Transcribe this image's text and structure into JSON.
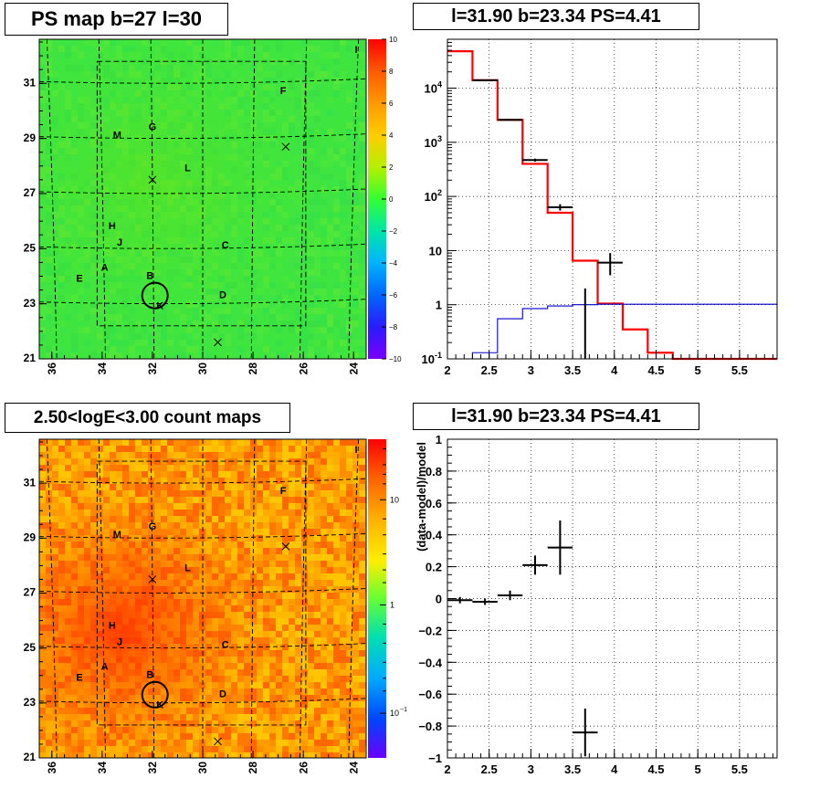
{
  "panels": {
    "ps_map_title": "PS map b=27 l=30",
    "spectrum_title": "l=31.90 b=23.34 PS=4.41",
    "count_map_title": "2.50<logE<3.00 count maps",
    "residual_title": "l=31.90 b=23.34 PS=4.41"
  },
  "map_axes": {
    "x_ticks": [
      "36",
      "34",
      "32",
      "30",
      "28",
      "26",
      "24"
    ],
    "y_ticks": [
      "31",
      "29",
      "27",
      "25",
      "23",
      "21"
    ]
  },
  "ps_colorbar": {
    "ticks": [
      "10",
      "8",
      "6",
      "4",
      "2",
      "0",
      "−2",
      "−4",
      "−6",
      "−8",
      "−10"
    ]
  },
  "count_colorbar": {
    "ticks": [
      "10",
      "1",
      "10"
    ],
    "tick_exponents": [
      "",
      "",
      "−1"
    ]
  },
  "map_labels": [
    {
      "name": "A",
      "l": 33.9,
      "b": 24.3
    },
    {
      "name": "B",
      "l": 32.1,
      "b": 24.0
    },
    {
      "name": "C",
      "l": 29.1,
      "b": 25.1
    },
    {
      "name": "D",
      "l": 29.2,
      "b": 23.3
    },
    {
      "name": "E",
      "l": 34.9,
      "b": 23.9
    },
    {
      "name": "F",
      "l": 26.8,
      "b": 30.7
    },
    {
      "name": "G",
      "l": 32.0,
      "b": 29.4
    },
    {
      "name": "H",
      "l": 33.6,
      "b": 25.8
    },
    {
      "name": "I",
      "l": 23.9,
      "b": 32.2
    },
    {
      "name": "J",
      "l": 33.3,
      "b": 25.2
    },
    {
      "name": "K",
      "l": 31.7,
      "b": 22.9
    },
    {
      "name": "L",
      "l": 30.6,
      "b": 27.9
    },
    {
      "name": "M",
      "l": 33.4,
      "b": 29.1
    }
  ],
  "map_crosses": [
    {
      "l": 32.0,
      "b": 27.5
    },
    {
      "l": 26.7,
      "b": 28.7
    },
    {
      "l": 29.4,
      "b": 21.6
    }
  ],
  "map_circle": {
    "l": 31.9,
    "b": 23.3
  },
  "colors": {
    "model_line": "#ff0000",
    "background_line": "#0000cc",
    "data_points": "#000000"
  },
  "chart_data": [
    {
      "type": "line",
      "title": "l=31.90 b=23.34 PS=4.41",
      "xlabel": "",
      "ylabel": "",
      "xlim": [
        2,
        5.95
      ],
      "ylim": [
        0.1,
        80000
      ],
      "log_y": true,
      "grid": true,
      "x_ticks": [
        "2",
        "2.5",
        "3",
        "3.5",
        "4",
        "4.5",
        "5",
        "5.5"
      ],
      "y_ticks": [
        "10^4",
        "10^3",
        "10^2",
        "10",
        "1",
        "10^-1"
      ],
      "series": [
        {
          "style": "histogram-red",
          "edges": [
            2.0,
            2.3,
            2.6,
            2.9,
            3.2,
            3.5,
            3.8,
            4.1,
            4.4,
            4.7,
            5.0,
            5.3,
            5.6,
            5.95
          ],
          "values": [
            48000,
            14000,
            2600,
            400,
            50,
            6.5,
            1.05,
            0.35,
            0.13,
            0.1,
            0.1,
            0.1,
            0.1
          ]
        },
        {
          "style": "histogram-blue",
          "edges": [
            2.0,
            2.3,
            2.6,
            2.9,
            3.2,
            3.5,
            3.8,
            4.1,
            4.4,
            4.7,
            5.0,
            5.3,
            5.6,
            5.95
          ],
          "values": [
            0.1,
            0.13,
            0.55,
            0.85,
            0.95,
            1.0,
            1.02,
            1.02,
            1.02,
            1.02,
            1.02,
            1.02,
            1.02
          ]
        },
        {
          "style": "points",
          "x": [
            2.45,
            2.75,
            3.05,
            3.35,
            3.65,
            3.95
          ],
          "y": [
            14000,
            2600,
            470,
            63,
            0.05,
            6.0
          ],
          "xerr": [
            0.15,
            0.15,
            0.15,
            0.15,
            0.0,
            0.15
          ],
          "ylo": [
            13800,
            2550,
            440,
            55,
            0.05,
            3.5
          ],
          "yhi": [
            14300,
            2680,
            500,
            72,
            2.0,
            9.0
          ]
        }
      ]
    },
    {
      "type": "scatter",
      "title": "l=31.90 b=23.34 PS=4.41",
      "xlabel": "",
      "ylabel": "(data-model)/model",
      "xlim": [
        2,
        5.95
      ],
      "ylim": [
        -1,
        1
      ],
      "grid": true,
      "x_ticks": [
        "2",
        "2.5",
        "3",
        "3.5",
        "4",
        "4.5",
        "5",
        "5.5"
      ],
      "y_ticks": [
        "1",
        "0.8",
        "0.6",
        "0.4",
        "0.2",
        "0",
        "−0.2",
        "−0.4",
        "−0.6",
        "−0.8",
        "−1"
      ],
      "x": [
        2.15,
        2.45,
        2.75,
        3.05,
        3.35,
        3.65
      ],
      "y": [
        -0.01,
        -0.02,
        0.02,
        0.21,
        0.32,
        -0.84
      ],
      "xerr": [
        0.15,
        0.15,
        0.15,
        0.15,
        0.15,
        0.15
      ],
      "yerr": [
        0.02,
        0.02,
        0.03,
        0.06,
        0.17,
        0.15
      ]
    }
  ]
}
